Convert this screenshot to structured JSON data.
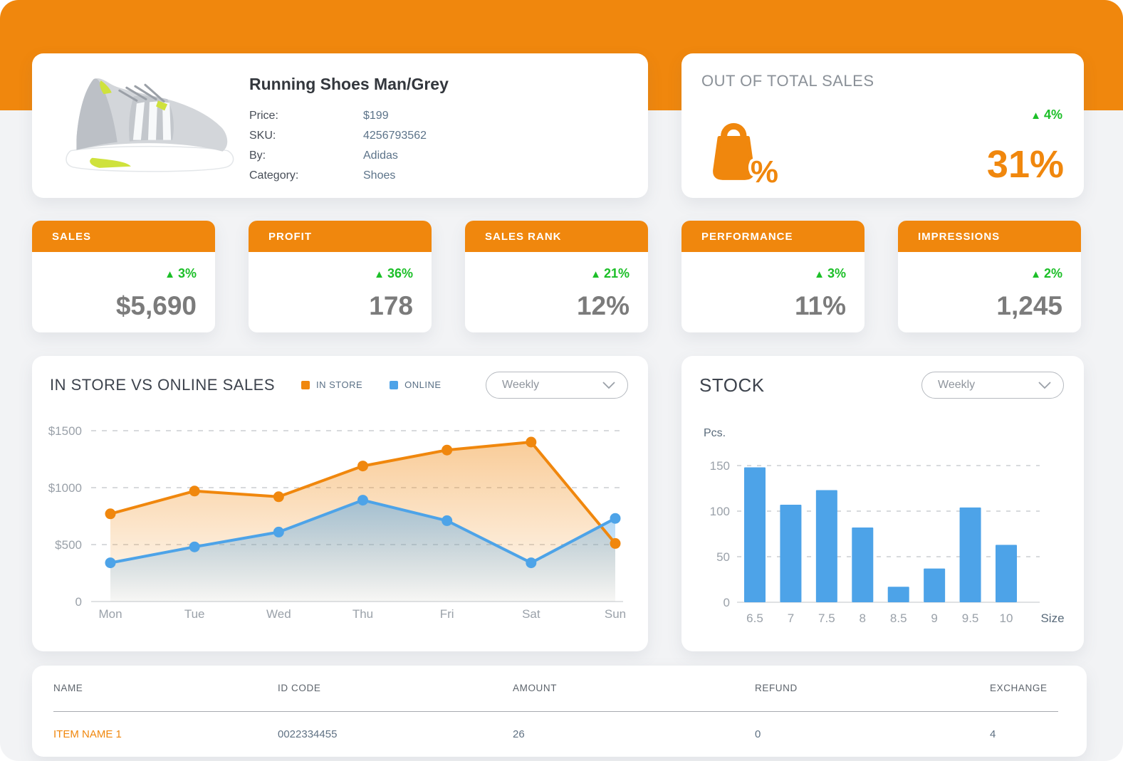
{
  "icons": {
    "up_arrow": "▲"
  },
  "theme": {
    "orange": "#F0870D",
    "green": "#1CBF28",
    "blue": "#4DA3E8",
    "value_grey": "#7b7b7b",
    "background": "#f2f3f5"
  },
  "product_card": {
    "title": "Running Shoes Man/Grey",
    "image": "grey-running-shoe",
    "fields": [
      {
        "label": "Price:",
        "value": "$199"
      },
      {
        "label": "SKU:",
        "value": "4256793562"
      },
      {
        "label": "By:",
        "value": "Adidas"
      },
      {
        "label": "Category:",
        "value": "Shoes"
      }
    ]
  },
  "total_sales_card": {
    "title": "OUT OF TOTAL SALES",
    "delta": "4%",
    "value": "31%",
    "icon": "shopping-bag-percent",
    "percent_glyph": "%"
  },
  "kpi_cards": [
    {
      "title": "SALES",
      "delta": "3%",
      "value": "$5,690"
    },
    {
      "title": "PROFIT",
      "delta": "36%",
      "value": "178"
    },
    {
      "title": "SALES RANK",
      "delta": "21%",
      "value": "12%"
    },
    {
      "title": "PERFORMANCE",
      "delta": "3%",
      "value": "11%"
    },
    {
      "title": "IMPRESSIONS",
      "delta": "2%",
      "value": "1,245"
    }
  ],
  "sales_chart": {
    "period": "Weekly"
  },
  "stock_chart": {
    "period": "Weekly"
  },
  "chart_data": [
    {
      "type": "area",
      "title": "IN STORE VS ONLINE SALES",
      "x": [
        "Mon",
        "Tue",
        "Wed",
        "Thu",
        "Fri",
        "Sat",
        "Sun"
      ],
      "series": [
        {
          "name": "IN STORE",
          "color": "#F0870D",
          "values": [
            770,
            970,
            920,
            1190,
            1330,
            1400,
            510
          ]
        },
        {
          "name": "ONLINE",
          "color": "#4DA3E8",
          "values": [
            340,
            480,
            610,
            890,
            710,
            340,
            730
          ]
        }
      ],
      "ylim": [
        0,
        1500
      ],
      "yticks": [
        {
          "label": "$1500",
          "value": 1500
        },
        {
          "label": "$1000",
          "value": 1000
        },
        {
          "label": "$500",
          "value": 500
        },
        {
          "label": "0",
          "value": 0
        }
      ],
      "grid": "dashed horizontal",
      "legend_position": "top"
    },
    {
      "type": "bar",
      "title": "STOCK",
      "categories": [
        "6.5",
        "7",
        "7.5",
        "8",
        "8.5",
        "9",
        "9.5",
        "10"
      ],
      "values": [
        148,
        107,
        123,
        82,
        17,
        37,
        104,
        63
      ],
      "bar_color": "#4DA3E8",
      "ylim": [
        0,
        150
      ],
      "yticks": [
        {
          "label": "150",
          "value": 150
        },
        {
          "label": "100",
          "value": 100
        },
        {
          "label": "50",
          "value": 50
        },
        {
          "label": "0",
          "value": 0
        }
      ],
      "xlabel": "Size",
      "ylabel": "Pcs.",
      "grid": "dashed horizontal"
    }
  ],
  "table": {
    "headers": [
      "NAME",
      "ID CODE",
      "AMOUNT",
      "REFUND",
      "EXCHANGE"
    ],
    "rows": [
      {
        "name": "ITEM NAME 1",
        "id_code": "0022334455",
        "amount": "26",
        "refund": "0",
        "exchange": "4"
      }
    ]
  }
}
